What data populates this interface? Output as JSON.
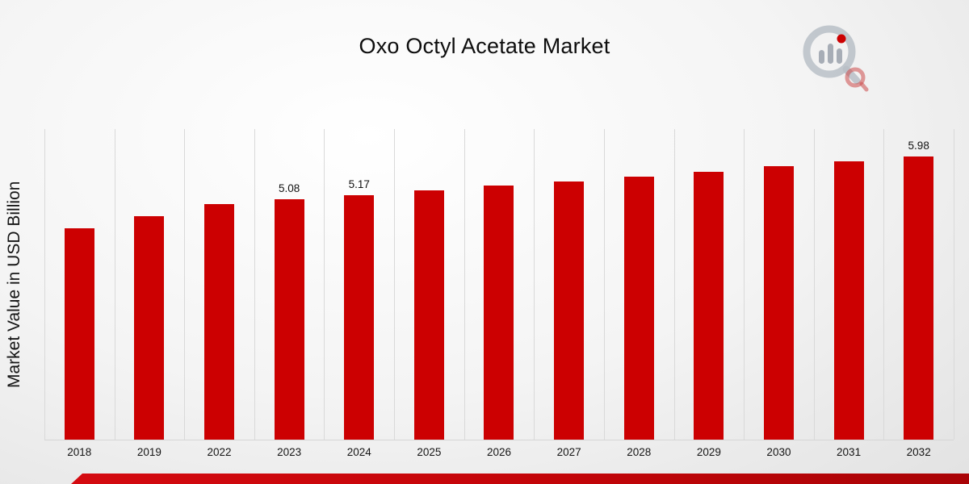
{
  "title": "Oxo Octyl Acetate Market",
  "y_axis_label": "Market Value in USD Billion",
  "colors": {
    "bar": "#cc0001",
    "footer_strip": "#c20408",
    "gridline": "#d9d9d9",
    "text": "#111111"
  },
  "logo": {
    "name": "market-research-magnifier-logo"
  },
  "chart_data": {
    "type": "bar",
    "title": "Oxo Octyl Acetate Market",
    "xlabel": "",
    "ylabel": "Market Value in USD Billion",
    "categories": [
      "2018",
      "2019",
      "2022",
      "2023",
      "2024",
      "2025",
      "2026",
      "2027",
      "2028",
      "2029",
      "2030",
      "2031",
      "2032"
    ],
    "values": [
      4.46,
      4.72,
      4.97,
      5.08,
      5.17,
      5.27,
      5.37,
      5.46,
      5.56,
      5.66,
      5.77,
      5.87,
      5.98
    ],
    "data_labels": [
      null,
      null,
      null,
      "5.08",
      "5.17",
      null,
      null,
      null,
      null,
      null,
      null,
      null,
      "5.98"
    ],
    "unit": "USD Billion",
    "ylim": [
      0,
      6.3
    ],
    "grid": "vertical-category-separators",
    "legend": "none",
    "bar_color": "#cc0001"
  }
}
